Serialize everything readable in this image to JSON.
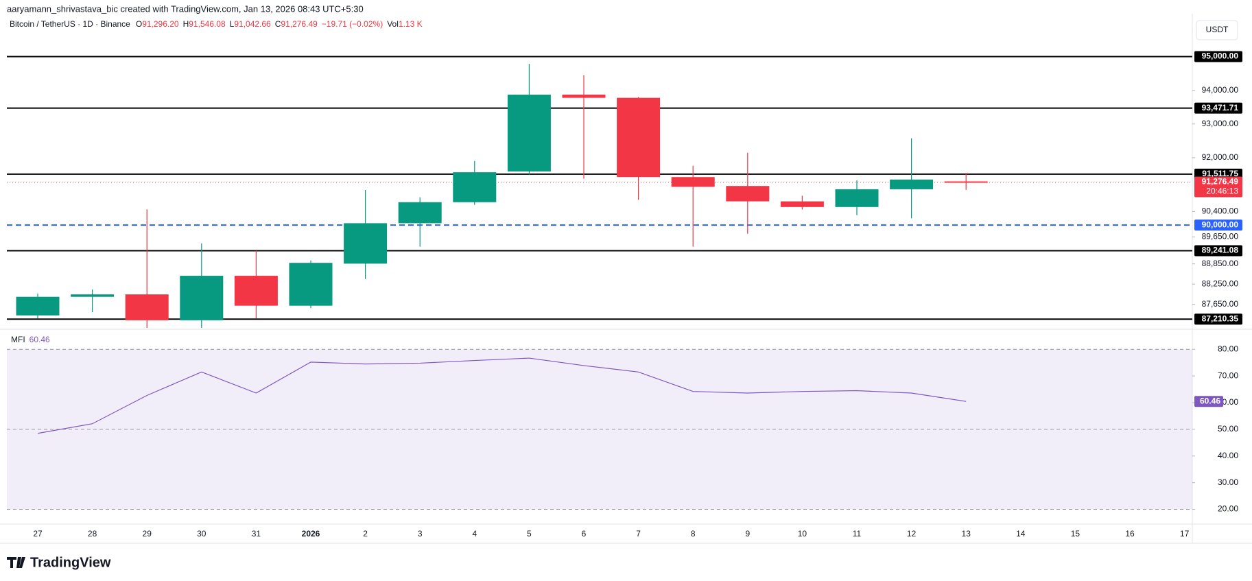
{
  "attribution": "aaryamann_shrivastava_bic created with TradingView.com, Jan 13, 2026 08:43 UTC+5:30",
  "currency_button": "USDT",
  "logo": "TradingView",
  "chart_data": {
    "type": "candlestick",
    "symbol": "Bitcoin / TetherUS · 1D · Binance",
    "ohlc_legend": [
      {
        "key": "O",
        "value": "91,296.20"
      },
      {
        "key": "H",
        "value": "91,546.08"
      },
      {
        "key": "L",
        "value": "91,042.66"
      },
      {
        "key": "C",
        "value": "91,276.49"
      }
    ],
    "change": "−19.71 (−0.02%)",
    "volume": {
      "key": "Vol",
      "value": "1.13 K"
    },
    "categories": [
      "27",
      "28",
      "29",
      "30",
      "31",
      "2026",
      "2",
      "3",
      "4",
      "5",
      "6",
      "7",
      "8",
      "9",
      "10",
      "11",
      "12",
      "13",
      "14",
      "15",
      "16",
      "17"
    ],
    "open": [
      87320,
      87872,
      87944,
      87176,
      88496,
      87608,
      88856,
      90056,
      90680,
      91592,
      93872,
      93776,
      91424,
      91160,
      90704,
      90536,
      91064,
      91296.2,
      null,
      null,
      null,
      null
    ],
    "high": [
      87968,
      88088,
      90464,
      89456,
      89240,
      88952,
      91040,
      90824,
      91904,
      94784,
      94448,
      93800,
      91760,
      92144,
      90872,
      91328,
      92576,
      91546.08,
      null,
      null,
      null,
      null
    ],
    "low": [
      87224,
      87416,
      86912,
      86912,
      87224,
      87536,
      88400,
      89360,
      90600,
      91500,
      91376,
      90752,
      89360,
      89744,
      90464,
      90296,
      90200,
      91042.66,
      null,
      null,
      null,
      null
    ],
    "close": [
      87872,
      87944,
      87176,
      88496,
      87608,
      88880,
      90056,
      90680,
      91568,
      93872,
      93776,
      91424,
      91136,
      90704,
      90536,
      91064,
      91352,
      91276.49,
      null,
      null,
      null,
      null
    ],
    "up_color": "#089981",
    "down_color": "#f23645",
    "ylim": [
      86950,
      96150
    ],
    "yticks": [
      {
        "value": 94000,
        "label": "94,000.00"
      },
      {
        "value": 93000,
        "label": "93,000.00"
      },
      {
        "value": 92000,
        "label": "92,000.00"
      },
      {
        "value": 90400,
        "label": "90,400.00"
      },
      {
        "value": 89650,
        "label": "89,650.00"
      },
      {
        "value": 88850,
        "label": "88,850.00"
      },
      {
        "value": 88250,
        "label": "88,250.00"
      },
      {
        "value": 87650,
        "label": "87,650.00"
      }
    ],
    "levels": [
      {
        "value": 95000,
        "label": "95,000.00",
        "color": "#000000",
        "style": "solid"
      },
      {
        "value": 93471.71,
        "label": "93,471.71",
        "color": "#000000",
        "style": "solid"
      },
      {
        "value": 91511.75,
        "label": "91,511.75",
        "color": "#000000",
        "style": "solid"
      },
      {
        "value": 90000,
        "label": "90,000.00",
        "color": "#2962ff",
        "style": "dashed"
      },
      {
        "value": 89241.08,
        "label": "89,241.08",
        "color": "#000000",
        "style": "solid"
      },
      {
        "value": 87210.35,
        "label": "87,210.35",
        "color": "#000000",
        "style": "solid"
      }
    ],
    "last_price": {
      "value": 91276.49,
      "label": "91,276.49",
      "countdown": "20:46:13",
      "color": "#f23645"
    },
    "mfi": {
      "name": "MFI",
      "value_label": "60.46",
      "color": "#7e57c2",
      "values": [
        48.5,
        52.1,
        62.7,
        71.5,
        63.6,
        75.2,
        74.5,
        74.8,
        75.8,
        76.7,
        73.9,
        71.5,
        64.2,
        63.6,
        64.2,
        64.5,
        63.6,
        60.46,
        null,
        null,
        null,
        null
      ],
      "ylim": [
        15,
        87
      ],
      "yticks": [
        {
          "value": 80,
          "label": "80.00"
        },
        {
          "value": 70,
          "label": "70.00"
        },
        {
          "value": 60,
          "label": "60.00"
        },
        {
          "value": 50,
          "label": "50.00"
        },
        {
          "value": 40,
          "label": "40.00"
        },
        {
          "value": 30,
          "label": "30.00"
        },
        {
          "value": 20,
          "label": "20.00"
        }
      ],
      "band": [
        20,
        80
      ],
      "dashed_levels": [
        80,
        50,
        20
      ]
    }
  }
}
